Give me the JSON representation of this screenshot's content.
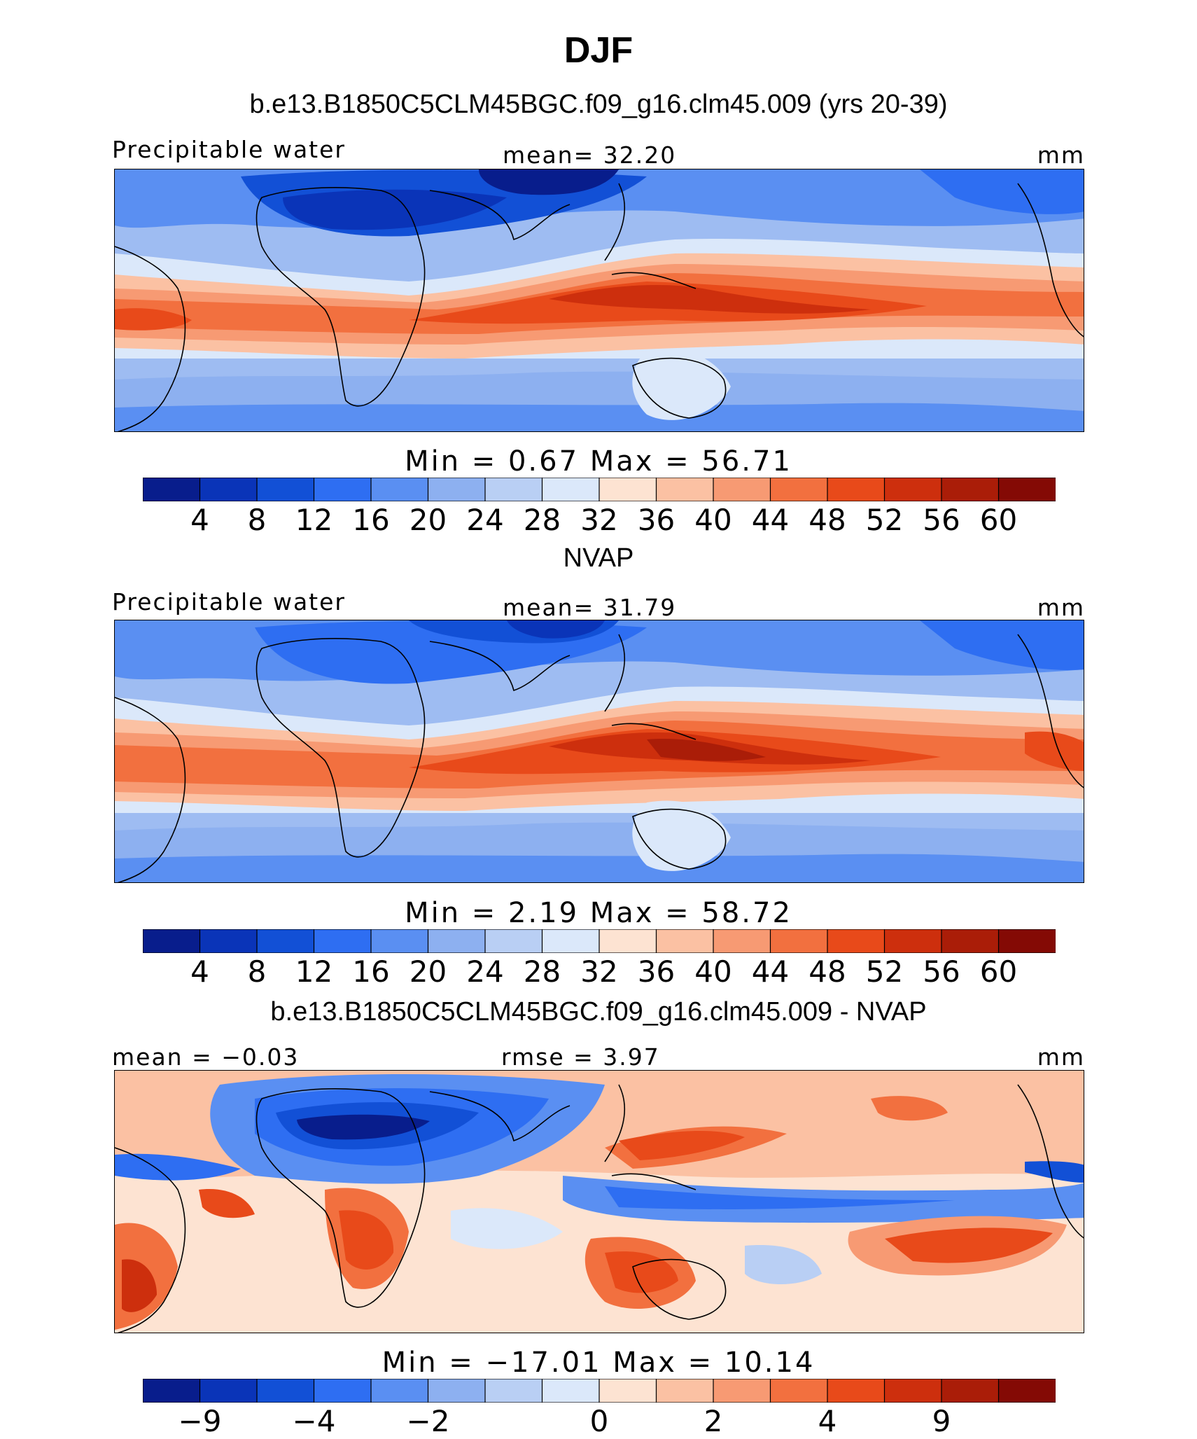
{
  "figure": {
    "title": "DJF",
    "variable": "Precipitable water",
    "units": "mm"
  },
  "colors": {
    "seq": [
      "#081d8c",
      "#0a34b8",
      "#1250d6",
      "#2e6ef2",
      "#5a8ff2",
      "#8db0f0",
      "#b9cff4",
      "#dbe8fa",
      "#fde3d2",
      "#fbc1a3",
      "#f79a73",
      "#f2703f",
      "#e84a1a",
      "#cd2f0d",
      "#aa1d08",
      "#840a05"
    ],
    "diff": [
      "#081d8c",
      "#0a34b8",
      "#1250d6",
      "#2e6ef2",
      "#5a8ff2",
      "#8db0f0",
      "#b9cff4",
      "#dbe8fa",
      "#fde3d2",
      "#fbc1a3",
      "#f79a73",
      "#f2703f",
      "#e84a1a",
      "#cd2f0d",
      "#aa1d08",
      "#840a05"
    ]
  },
  "panels": [
    {
      "title": "b.e13.B1850C5CLM45BGC.f09_g16.clm45.009 (yrs 20-39)",
      "left_label": "Precipitable water",
      "center_label": "mean=   32.20",
      "right_label": "mm",
      "min_max": "Min  =     0.67  Max  =   56.71",
      "colorbar_ticks": [
        "4",
        "8",
        "12",
        "16",
        "20",
        "24",
        "28",
        "32",
        "36",
        "40",
        "44",
        "48",
        "52",
        "56",
        "60"
      ]
    },
    {
      "title": "NVAP",
      "left_label": "Precipitable water",
      "center_label": "mean=   31.79",
      "right_label": "mm",
      "min_max": "Min  =     2.19  Max  =   58.72",
      "colorbar_ticks": [
        "4",
        "8",
        "12",
        "16",
        "20",
        "24",
        "28",
        "32",
        "36",
        "40",
        "44",
        "48",
        "52",
        "56",
        "60"
      ]
    },
    {
      "title": "b.e13.B1850C5CLM45BGC.f09_g16.clm45.009 - NVAP",
      "left_label": "mean  =   −0.03",
      "center_label": "rmse  =    3.97",
      "right_label": "mm",
      "min_max": "Min  = −17.01  Max  =   10.14",
      "colorbar_ticks": [
        "−9",
        "−4",
        "−2",
        "0",
        "2",
        "4",
        "9"
      ]
    }
  ],
  "chart_data": [
    {
      "type": "heatmap",
      "title": "b.e13.B1850C5CLM45BGC.f09_g16.clm45.009 (yrs 20-39)",
      "variable": "Precipitable water",
      "units": "mm",
      "mean": 32.2,
      "min": 0.67,
      "max": 56.71,
      "contour_levels": [
        4,
        8,
        12,
        16,
        20,
        24,
        28,
        32,
        36,
        40,
        44,
        48,
        52,
        56,
        60
      ],
      "domain": "tropics, ~40S–40N, Atlantic-centred"
    },
    {
      "type": "heatmap",
      "title": "NVAP",
      "variable": "Precipitable water",
      "units": "mm",
      "mean": 31.79,
      "min": 2.19,
      "max": 58.72,
      "contour_levels": [
        4,
        8,
        12,
        16,
        20,
        24,
        28,
        32,
        36,
        40,
        44,
        48,
        52,
        56,
        60
      ],
      "domain": "tropics, ~40S–40N, Atlantic-centred"
    },
    {
      "type": "heatmap",
      "title": "b.e13.B1850C5CLM45BGC.f09_g16.clm45.009 - NVAP",
      "variable": "Precipitable water difference",
      "units": "mm",
      "mean": -0.03,
      "rmse": 3.97,
      "min": -17.01,
      "max": 10.14,
      "contour_levels": [
        -9,
        -4,
        -2,
        0,
        2,
        4,
        9
      ],
      "domain": "tropics, ~40S–40N, Atlantic-centred"
    }
  ]
}
